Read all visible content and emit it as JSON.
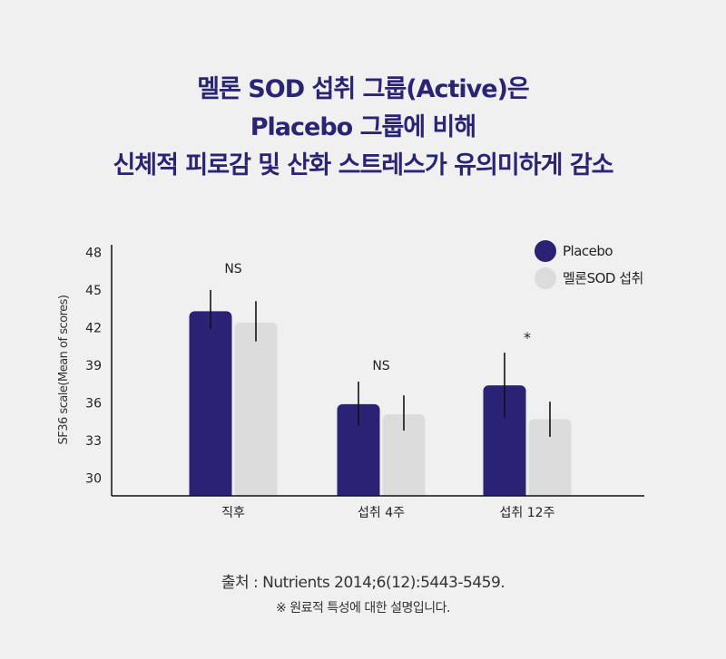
{
  "headline": {
    "line1": "멜론 SOD 섭취 그룹(Active)은",
    "line2": "Placebo 그룹에 비해",
    "line3": "신체적 피로감 및 산화 스트레스가 유의미하게 감소"
  },
  "chart_data": {
    "type": "bar",
    "categories": [
      "직후",
      "섭취 4주",
      "섭취 12주"
    ],
    "series": [
      {
        "name": "Placebo",
        "color": "#2a2275",
        "values": [
          43.3,
          35.9,
          37.4
        ],
        "err_low": [
          41.9,
          34.2,
          34.8
        ],
        "err_high": [
          45.0,
          37.7,
          40.0
        ]
      },
      {
        "name": "멜론SOD 섭취",
        "color": "#dcdcdc",
        "values": [
          42.4,
          35.1,
          34.7
        ],
        "err_low": [
          40.9,
          33.8,
          33.3
        ],
        "err_high": [
          44.1,
          36.6,
          36.1
        ]
      }
    ],
    "annotations": [
      "NS",
      "NS",
      "*"
    ],
    "ylabel": "SF36 scale(Mean of scores)",
    "xlabel": "",
    "yticks": [
      30,
      33,
      36,
      39,
      42,
      45,
      48
    ],
    "ylim": [
      28.6,
      48.6
    ],
    "legend_position": "top-right",
    "grid": false
  },
  "footer": {
    "source": "출처 : Nutrients 2014;6(12):5443-5459.",
    "note": "※ 원료적 특성에 대한 설명입니다."
  }
}
